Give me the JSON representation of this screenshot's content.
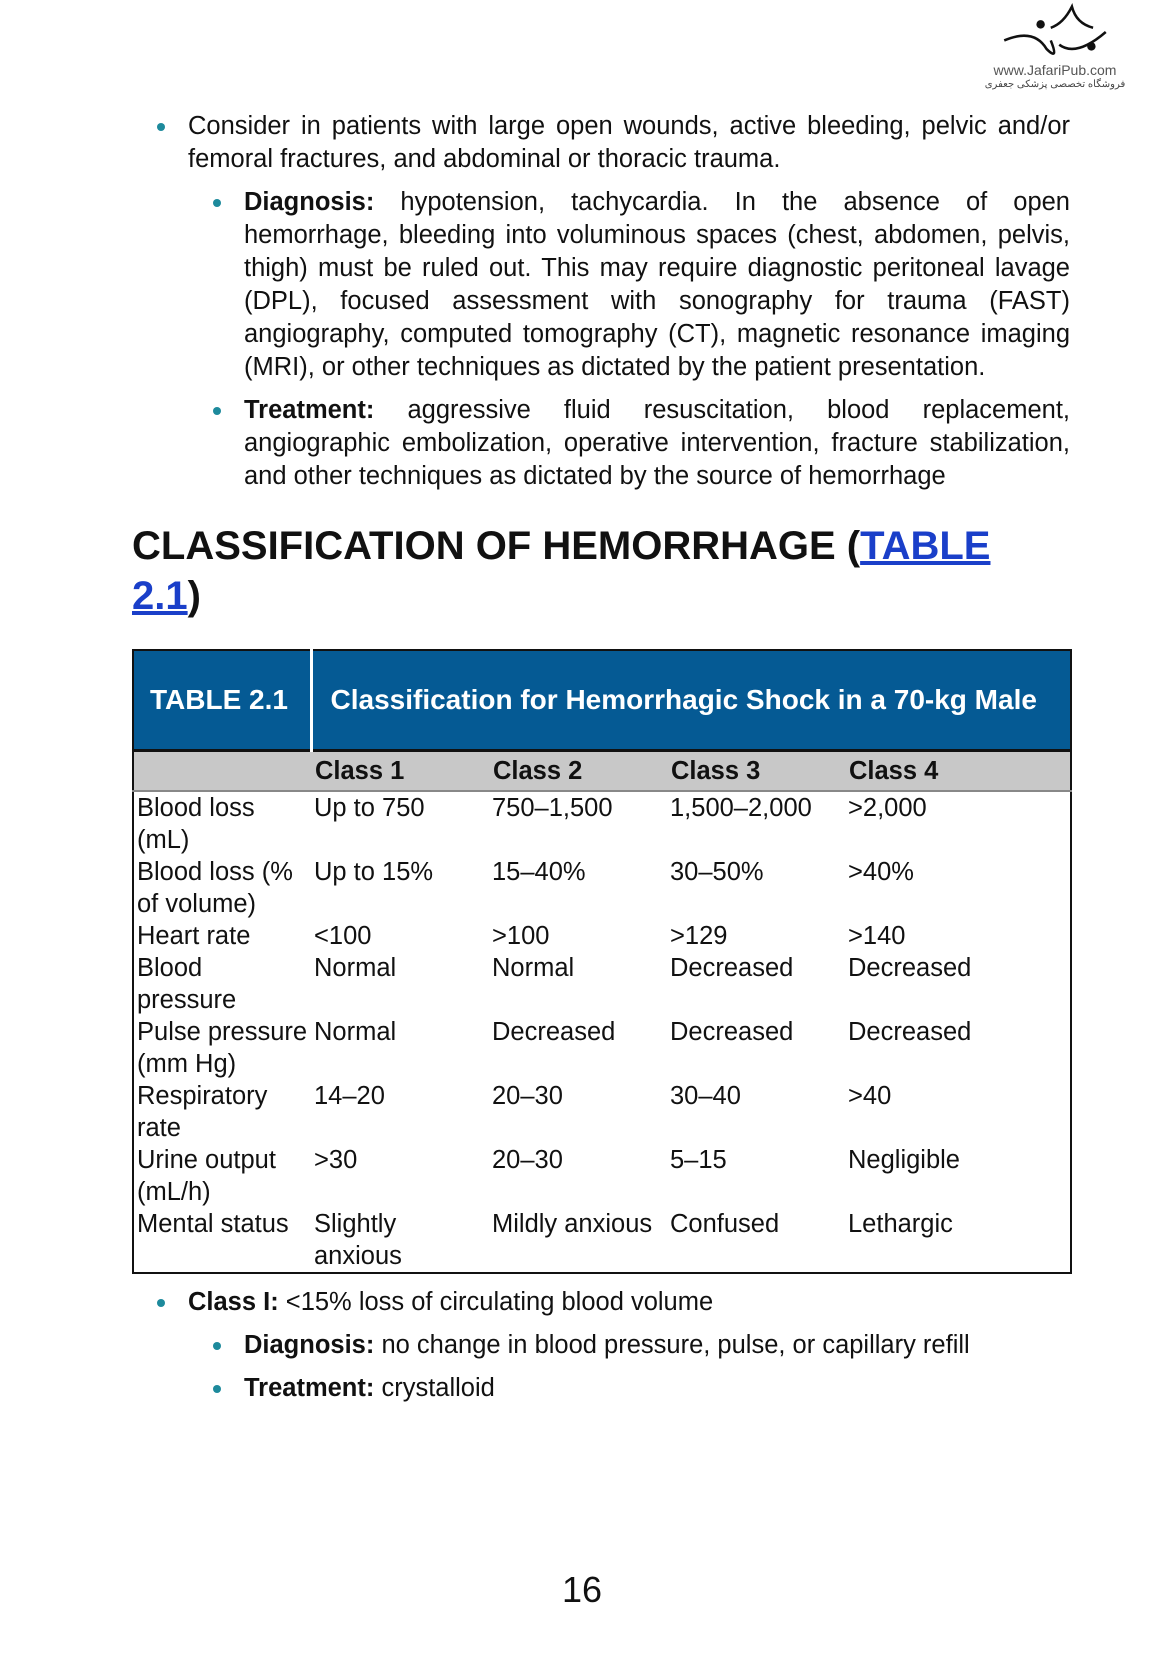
{
  "logo": {
    "url": "www.JafariPub.com",
    "tagline": "فروشگاه تخصصی پزشکی جعفری"
  },
  "bullets": [
    {
      "text": "Consider in patients with large open wounds, active bleeding, pelvic and/or femoral fractures, and abdominal or thoracic trauma."
    }
  ],
  "sub_bullets": [
    {
      "label": "Diagnosis:",
      "text": " hypotension, tachycardia. In the absence of open hemorrhage, bleeding into voluminous spaces (chest, abdomen, pelvis, thigh) must be ruled out. This may require diagnostic peritoneal lavage (DPL), focused assessment with sonography for trauma (FAST) angiography, computed tomography (CT), magnetic resonance imaging (MRI), or other techniques as dictated by the patient presentation."
    },
    {
      "label": "Treatment:",
      "text": " aggressive fluid resuscitation, blood replacement, angiographic embolization, operative intervention, fracture stabilization, and other techniques as dictated by the source of hemorrhage"
    }
  ],
  "heading": {
    "prefix": "CLASSIFICATION OF HEMORRHAGE (",
    "link": "TABLE 2.1",
    "suffix": ")"
  },
  "table": {
    "number": "TABLE 2.1",
    "title": "Classification for Hemorrhagic Shock in a 70-kg Male",
    "columns": [
      "",
      "Class 1",
      "Class 2",
      "Class 3",
      "Class 4"
    ],
    "rows": [
      [
        "Blood loss (mL)",
        "Up to 750",
        "750–1,500",
        "1,500–2,000",
        ">2,000"
      ],
      [
        "Blood loss (% of volume)",
        "Up to 15%",
        "15–40%",
        "30–50%",
        ">40%"
      ],
      [
        "Heart rate",
        "<100",
        ">100",
        ">129",
        ">140"
      ],
      [
        "Blood pressure",
        "Normal",
        "Normal",
        "Decreased",
        "Decreased"
      ],
      [
        "Pulse pressure (mm Hg)",
        "Normal",
        "Decreased",
        "Decreased",
        "Decreased"
      ],
      [
        "Respiratory rate",
        "14–20",
        "20–30",
        "30–40",
        ">40"
      ],
      [
        "Urine output (mL/h)",
        ">30",
        "20–30",
        "5–15",
        "Negligible"
      ],
      [
        "Mental status",
        "Slightly anxious",
        "Mildly anxious",
        "Confused",
        "Lethargic"
      ]
    ]
  },
  "after": {
    "bullet": {
      "label": "Class I:",
      "text": " <15% loss of circulating blood volume"
    },
    "sub": [
      {
        "label": "Diagnosis:",
        "text": " no change in blood pressure, pulse, or capillary refill"
      },
      {
        "label": "Treatment:",
        "text": " crystalloid"
      }
    ]
  },
  "page_number": "16",
  "colors": {
    "table_header": "#055a94",
    "bullet": "#1d8a9c",
    "link": "#1a3fc9",
    "column_header": "#c8c8c8"
  }
}
